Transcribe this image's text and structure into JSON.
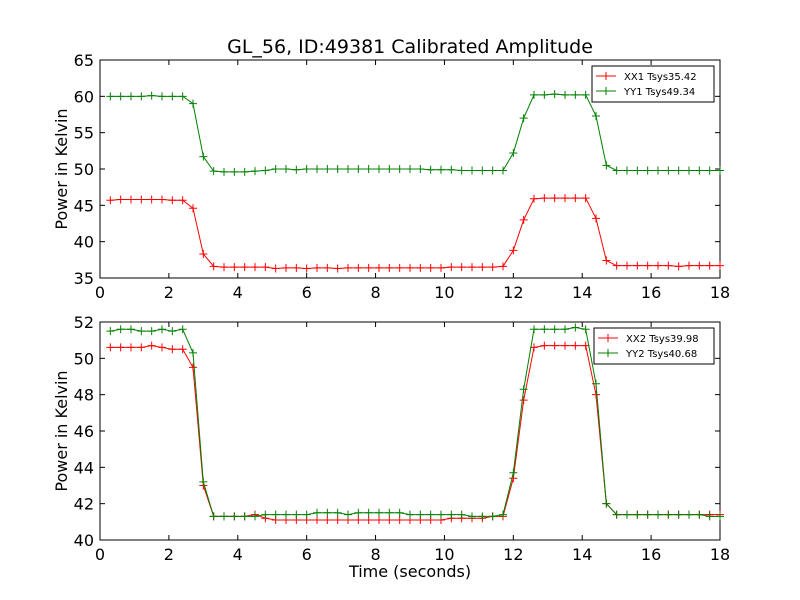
{
  "figure": {
    "title": "GL_56, ID:49381 Calibrated Amplitude",
    "xlabel": "Time (seconds)"
  },
  "chart_data": [
    {
      "type": "line",
      "ylabel": "Power in Kelvin",
      "xlim": [
        0,
        18
      ],
      "ylim": [
        35,
        65
      ],
      "xticks": [
        "0",
        "2",
        "4",
        "6",
        "8",
        "10",
        "12",
        "14",
        "16",
        "18"
      ],
      "yticks": [
        "35",
        "40",
        "45",
        "50",
        "55",
        "60",
        "65"
      ],
      "grid": false,
      "legend_position": "top-right",
      "x": [
        0.3,
        0.6,
        0.9,
        1.2,
        1.5,
        1.8,
        2.1,
        2.4,
        2.7,
        3.0,
        3.3,
        3.6,
        3.9,
        4.2,
        4.5,
        4.8,
        5.1,
        5.4,
        5.7,
        6.0,
        6.3,
        6.6,
        6.9,
        7.2,
        7.5,
        7.8,
        8.1,
        8.4,
        8.7,
        9.0,
        9.3,
        9.6,
        9.9,
        10.2,
        10.5,
        10.8,
        11.1,
        11.4,
        11.7,
        12.0,
        12.3,
        12.6,
        12.9,
        13.2,
        13.5,
        13.8,
        14.1,
        14.4,
        14.7,
        15.0,
        15.3,
        15.6,
        15.9,
        16.2,
        16.5,
        16.8,
        17.1,
        17.4,
        17.7,
        18.0
      ],
      "series": [
        {
          "name": "XX1 Tsys35.42",
          "color": "#ff0000",
          "values": [
            45.7,
            45.8,
            45.8,
            45.8,
            45.8,
            45.8,
            45.7,
            45.7,
            44.6,
            38.3,
            36.6,
            36.5,
            36.5,
            36.5,
            36.5,
            36.5,
            36.3,
            36.4,
            36.4,
            36.3,
            36.4,
            36.4,
            36.3,
            36.4,
            36.4,
            36.4,
            36.4,
            36.4,
            36.4,
            36.4,
            36.4,
            36.4,
            36.4,
            36.5,
            36.5,
            36.5,
            36.5,
            36.5,
            36.6,
            38.8,
            43.0,
            45.9,
            46.0,
            46.0,
            46.0,
            46.0,
            46.0,
            43.2,
            37.4,
            36.7,
            36.7,
            36.7,
            36.7,
            36.7,
            36.7,
            36.6,
            36.7,
            36.7,
            36.7,
            36.7
          ]
        },
        {
          "name": "YY1 Tsys49.34",
          "color": "#008000",
          "values": [
            60.0,
            60.0,
            60.0,
            60.0,
            60.1,
            60.0,
            60.0,
            60.0,
            59.0,
            51.7,
            49.7,
            49.6,
            49.6,
            49.6,
            49.7,
            49.8,
            50.0,
            50.0,
            49.9,
            50.0,
            50.0,
            50.0,
            50.0,
            50.0,
            50.0,
            50.0,
            50.0,
            50.0,
            50.0,
            50.0,
            50.0,
            49.9,
            49.9,
            49.9,
            49.8,
            49.8,
            49.8,
            49.8,
            49.8,
            52.2,
            57.0,
            60.2,
            60.2,
            60.3,
            60.2,
            60.2,
            60.2,
            57.3,
            50.5,
            49.8,
            49.8,
            49.8,
            49.8,
            49.8,
            49.8,
            49.8,
            49.8,
            49.8,
            49.8,
            49.8
          ]
        }
      ]
    },
    {
      "type": "line",
      "ylabel": "Power in Kelvin",
      "xlabel": "Time (seconds)",
      "xlim": [
        0,
        18
      ],
      "ylim": [
        40,
        52
      ],
      "xticks": [
        "0",
        "2",
        "4",
        "6",
        "8",
        "10",
        "12",
        "14",
        "16",
        "18"
      ],
      "yticks": [
        "40",
        "42",
        "44",
        "46",
        "48",
        "50",
        "52"
      ],
      "grid": false,
      "legend_position": "top-right",
      "x": [
        0.3,
        0.6,
        0.9,
        1.2,
        1.5,
        1.8,
        2.1,
        2.4,
        2.7,
        3.0,
        3.3,
        3.6,
        3.9,
        4.2,
        4.5,
        4.8,
        5.1,
        5.4,
        5.7,
        6.0,
        6.3,
        6.6,
        6.9,
        7.2,
        7.5,
        7.8,
        8.1,
        8.4,
        8.7,
        9.0,
        9.3,
        9.6,
        9.9,
        10.2,
        10.5,
        10.8,
        11.1,
        11.4,
        11.7,
        12.0,
        12.3,
        12.6,
        12.9,
        13.2,
        13.5,
        13.8,
        14.1,
        14.4,
        14.7,
        15.0,
        15.3,
        15.6,
        15.9,
        16.2,
        16.5,
        16.8,
        17.1,
        17.4,
        17.7,
        18.0
      ],
      "series": [
        {
          "name": "XX2 Tsys39.98",
          "color": "#ff0000",
          "values": [
            50.6,
            50.6,
            50.6,
            50.6,
            50.7,
            50.6,
            50.5,
            50.5,
            49.5,
            43.0,
            41.3,
            41.3,
            41.3,
            41.3,
            41.4,
            41.2,
            41.1,
            41.1,
            41.1,
            41.1,
            41.1,
            41.1,
            41.1,
            41.1,
            41.1,
            41.1,
            41.1,
            41.1,
            41.1,
            41.1,
            41.1,
            41.1,
            41.1,
            41.2,
            41.2,
            41.2,
            41.2,
            41.3,
            41.3,
            43.4,
            47.7,
            50.6,
            50.7,
            50.7,
            50.7,
            50.7,
            50.7,
            48.0,
            42.0,
            41.4,
            41.4,
            41.4,
            41.4,
            41.4,
            41.4,
            41.4,
            41.4,
            41.4,
            41.4,
            41.4
          ]
        },
        {
          "name": "YY2 Tsys40.68",
          "color": "#008000",
          "values": [
            51.5,
            51.6,
            51.6,
            51.5,
            51.5,
            51.6,
            51.5,
            51.6,
            50.3,
            43.2,
            41.3,
            41.3,
            41.3,
            41.3,
            41.3,
            41.4,
            41.4,
            41.4,
            41.4,
            41.4,
            41.5,
            41.5,
            41.5,
            41.4,
            41.5,
            41.5,
            41.5,
            41.5,
            41.5,
            41.4,
            41.4,
            41.4,
            41.4,
            41.4,
            41.4,
            41.3,
            41.3,
            41.3,
            41.4,
            43.7,
            48.3,
            51.6,
            51.6,
            51.6,
            51.6,
            51.7,
            51.6,
            48.6,
            42.0,
            41.4,
            41.4,
            41.4,
            41.4,
            41.4,
            41.4,
            41.4,
            41.4,
            41.4,
            41.3,
            41.3
          ]
        }
      ]
    }
  ]
}
